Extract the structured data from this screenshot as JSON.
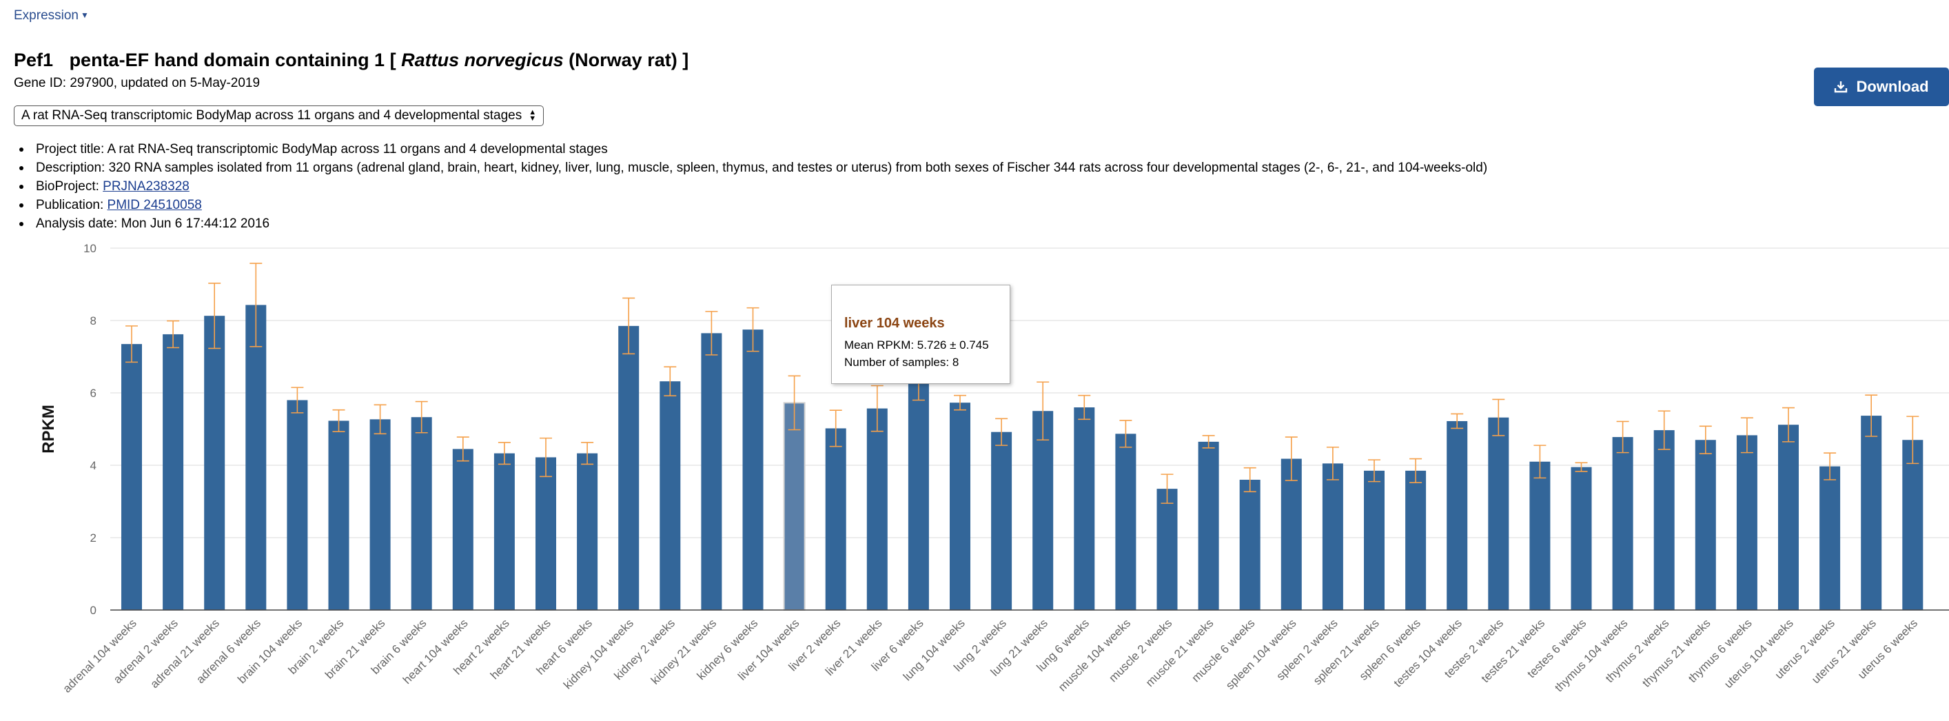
{
  "header": {
    "expression_menu": "Expression",
    "gene_symbol": "Pef1",
    "title_prefix": "penta-EF hand domain containing 1 [",
    "species": "Rattus norvegicus",
    "title_suffix": "(Norway rat) ]",
    "gene_id_line": "Gene ID: 297900, updated on 5-May-2019",
    "download_label": "Download"
  },
  "project_select": {
    "selected": "A rat RNA-Seq transcriptomic BodyMap across 11 organs and 4 developmental stages"
  },
  "info": {
    "project_title_label": "Project title:",
    "project_title": "A rat RNA-Seq transcriptomic BodyMap across 11 organs and 4 developmental stages",
    "description_label": "Description:",
    "description": "320 RNA samples isolated from 11 organs (adrenal gland, brain, heart, kidney, liver, lung, muscle, spleen, thymus, and testes or uterus) from both sexes of Fischer 344 rats across four developmental stages (2-, 6-, 21-, and 104-weeks-old)",
    "bioproject_label": "BioProject:",
    "bioproject": "PRJNA238328",
    "publication_label": "Publication:",
    "publication": "PMID 24510058",
    "analysis_date_label": "Analysis date:",
    "analysis_date": "Mon Jun 6 17:44:12 2016"
  },
  "tooltip": {
    "title": "liver 104 weeks",
    "mean_line": "Mean RPKM: 5.726 ± 0.745",
    "samples_line": "Number of samples: 8"
  },
  "colors": {
    "bar": "#336699",
    "error_bar": "#f5a04a",
    "highlight_bar": "#5a7fa8",
    "link": "#1a3d8f",
    "button": "#24589a",
    "tooltip_title": "#8b4513"
  },
  "chart_data": {
    "type": "bar",
    "ylabel": "RPKM",
    "ylim": [
      0,
      10
    ],
    "yticks": [
      0,
      2,
      4,
      6,
      8,
      10
    ],
    "grid": true,
    "highlighted": "liver 104 weeks",
    "categories": [
      "adrenal 104 weeks",
      "adrenal 2 weeks",
      "adrenal 21 weeks",
      "adrenal 6 weeks",
      "brain 104 weeks",
      "brain 2 weeks",
      "brain 21 weeks",
      "brain 6 weeks",
      "heart 104 weeks",
      "heart 2 weeks",
      "heart 21 weeks",
      "heart 6 weeks",
      "kidney 104 weeks",
      "kidney 2 weeks",
      "kidney 21 weeks",
      "kidney 6 weeks",
      "liver 104 weeks",
      "liver 2 weeks",
      "liver 21 weeks",
      "liver 6 weeks",
      "lung 104 weeks",
      "lung 2 weeks",
      "lung 21 weeks",
      "lung 6 weeks",
      "muscle 104 weeks",
      "muscle 2 weeks",
      "muscle 21 weeks",
      "muscle 6 weeks",
      "spleen 104 weeks",
      "spleen 2 weeks",
      "spleen 21 weeks",
      "spleen 6 weeks",
      "testes 104 weeks",
      "testes 2 weeks",
      "testes 21 weeks",
      "testes 6 weeks",
      "thymus 104 weeks",
      "thymus 2 weeks",
      "thymus 21 weeks",
      "thymus 6 weeks",
      "uterus 104 weeks",
      "uterus 2 weeks",
      "uterus 21 weeks",
      "uterus 6 weeks"
    ],
    "values": [
      7.35,
      7.62,
      8.13,
      8.43,
      5.8,
      5.23,
      5.27,
      5.33,
      4.45,
      4.33,
      4.22,
      4.33,
      7.85,
      6.32,
      7.65,
      7.75,
      5.726,
      5.02,
      5.57,
      6.3,
      5.73,
      4.92,
      5.5,
      5.6,
      4.87,
      3.35,
      4.65,
      3.6,
      4.18,
      4.05,
      3.85,
      3.85,
      5.22,
      5.32,
      4.1,
      3.95,
      4.78,
      4.97,
      4.7,
      4.83,
      5.12,
      3.97,
      5.37,
      4.7
    ],
    "errors": [
      0.5,
      0.37,
      0.9,
      1.15,
      0.35,
      0.3,
      0.4,
      0.43,
      0.33,
      0.3,
      0.53,
      0.3,
      0.77,
      0.4,
      0.6,
      0.6,
      0.745,
      0.5,
      0.63,
      0.5,
      0.2,
      0.37,
      0.8,
      0.33,
      0.37,
      0.4,
      0.17,
      0.33,
      0.6,
      0.45,
      0.3,
      0.33,
      0.2,
      0.5,
      0.45,
      0.12,
      0.43,
      0.53,
      0.38,
      0.48,
      0.47,
      0.37,
      0.57,
      0.65
    ]
  }
}
